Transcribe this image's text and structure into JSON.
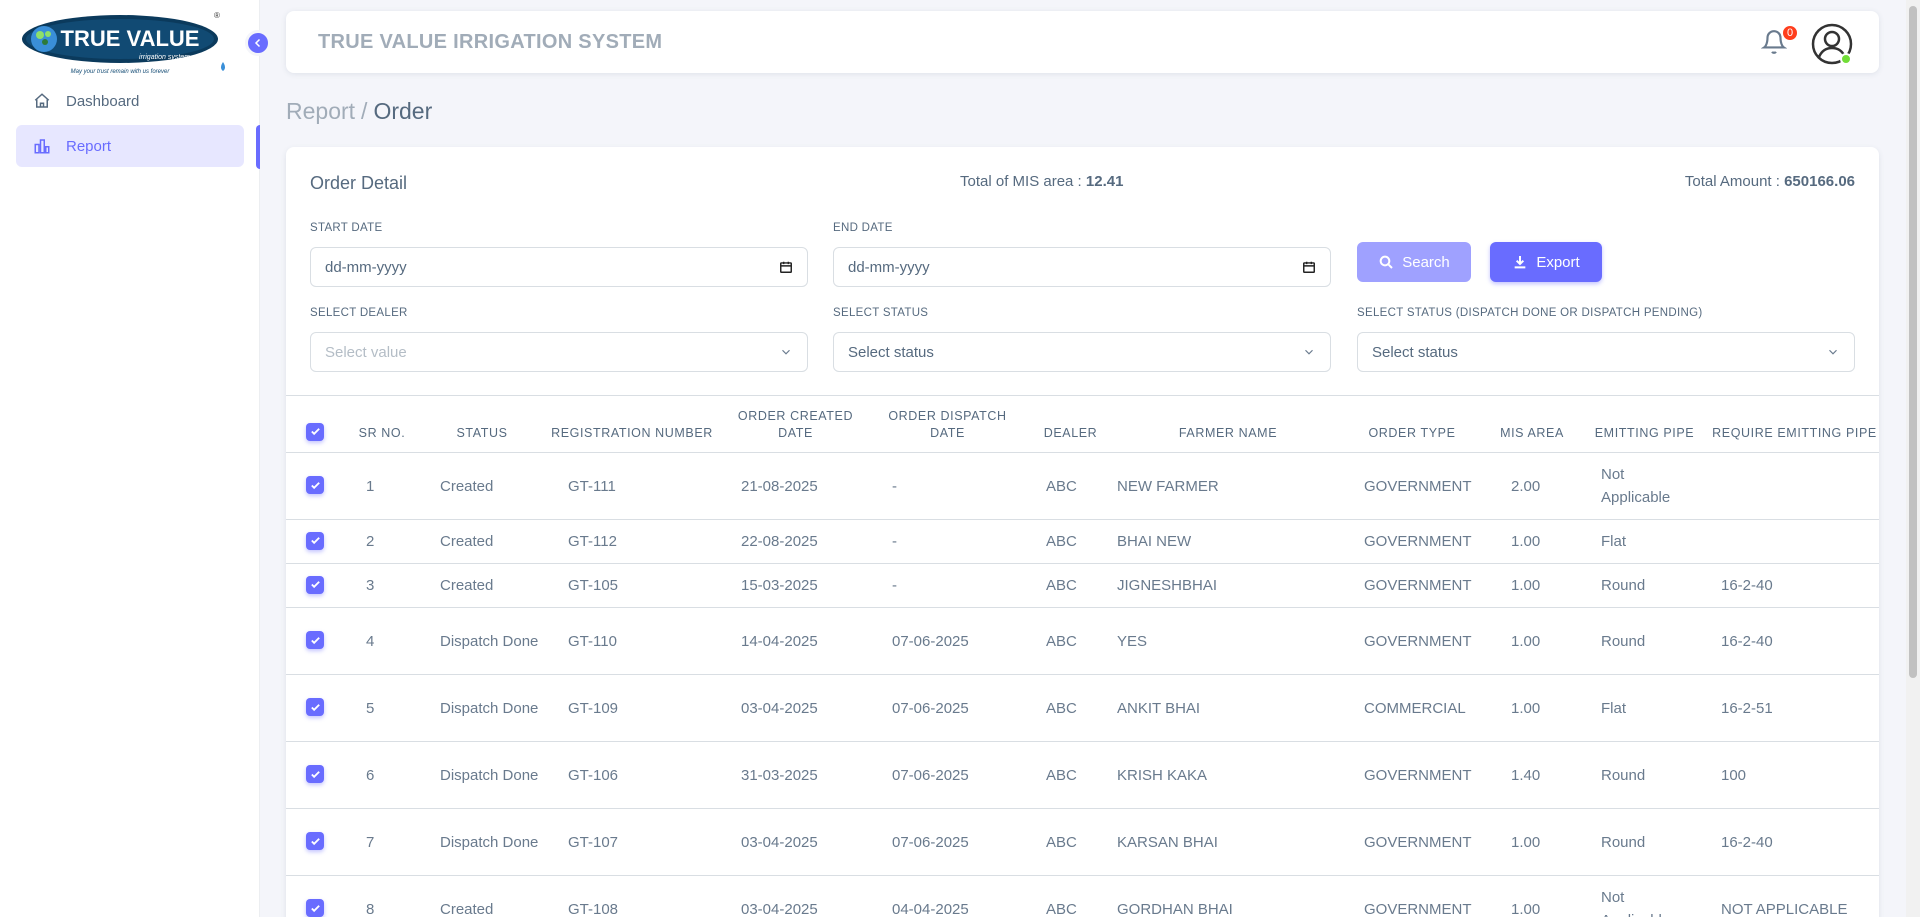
{
  "brand": {
    "logo_text": "TRUE VALUE",
    "logo_tagline": "irrigation system",
    "logo_slogan": "May your trust remain with us forever"
  },
  "sidebar": {
    "items": [
      {
        "label": "Dashboard",
        "icon": "home-icon",
        "active": false
      },
      {
        "label": "Report",
        "icon": "bar-chart-icon",
        "active": true
      }
    ]
  },
  "navbar": {
    "title": "TRUE VALUE IRRIGATION SYSTEM",
    "notification_count": "0"
  },
  "breadcrumb": {
    "parent": "Report",
    "separator": "/",
    "current": "Order"
  },
  "card": {
    "title": "Order Detail",
    "mis_label": "Total of MIS area :",
    "mis_value": "12.41",
    "amount_label": "Total Amount :",
    "amount_value": "650166.06"
  },
  "filters": {
    "start_date_label": "START DATE",
    "start_date_placeholder": "dd-mm-yyyy",
    "end_date_label": "END DATE",
    "end_date_placeholder": "dd-mm-yyyy",
    "search_label": "Search",
    "export_label": "Export",
    "dealer_label": "SELECT DEALER",
    "dealer_placeholder": "Select value",
    "status_label": "SELECT STATUS",
    "status_value": "Select status",
    "dispatch_label": "SELECT STATUS (DISPATCH DONE OR DISPATCH PENDING)",
    "dispatch_value": "Select status"
  },
  "table": {
    "headers": [
      "SR NO.",
      "STATUS",
      "REGISTRATION NUMBER",
      "ORDER CREATED DATE",
      "ORDER DISPATCH DATE",
      "DEALER",
      "FARMER NAME",
      "ORDER TYPE",
      "MIS AREA",
      "EMITTING PIPE",
      "REQUIRE EMITTING PIPE"
    ],
    "rows": [
      {
        "sr": "1",
        "status": "Created",
        "reg": "GT-111",
        "created": "21-08-2025",
        "dispatch": "-",
        "dealer": "ABC",
        "farmer": "NEW FARMER",
        "type": "GOVERNMENT",
        "mis": "2.00",
        "pipe": "Not Applicable",
        "req": ""
      },
      {
        "sr": "2",
        "status": "Created",
        "reg": "GT-112",
        "created": "22-08-2025",
        "dispatch": "-",
        "dealer": "ABC",
        "farmer": "BHAI NEW",
        "type": "GOVERNMENT",
        "mis": "1.00",
        "pipe": "Flat",
        "req": ""
      },
      {
        "sr": "3",
        "status": "Created",
        "reg": "GT-105",
        "created": "15-03-2025",
        "dispatch": "-",
        "dealer": "ABC",
        "farmer": "JIGNESHBHAI",
        "type": "GOVERNMENT",
        "mis": "1.00",
        "pipe": "Round",
        "req": "16-2-40"
      },
      {
        "sr": "4",
        "status": "Dispatch Done",
        "reg": "GT-110",
        "created": "14-04-2025",
        "dispatch": "07-06-2025",
        "dealer": "ABC",
        "farmer": "YES",
        "type": "GOVERNMENT",
        "mis": "1.00",
        "pipe": "Round",
        "req": "16-2-40"
      },
      {
        "sr": "5",
        "status": "Dispatch Done",
        "reg": "GT-109",
        "created": "03-04-2025",
        "dispatch": "07-06-2025",
        "dealer": "ABC",
        "farmer": "ANKIT BHAI",
        "type": "COMMERCIAL",
        "mis": "1.00",
        "pipe": "Flat",
        "req": "16-2-51"
      },
      {
        "sr": "6",
        "status": "Dispatch Done",
        "reg": "GT-106",
        "created": "31-03-2025",
        "dispatch": "07-06-2025",
        "dealer": "ABC",
        "farmer": "KRISH KAKA",
        "type": "GOVERNMENT",
        "mis": "1.40",
        "pipe": "Round",
        "req": "100"
      },
      {
        "sr": "7",
        "status": "Dispatch Done",
        "reg": "GT-107",
        "created": "03-04-2025",
        "dispatch": "07-06-2025",
        "dealer": "ABC",
        "farmer": "KARSAN BHAI",
        "type": "GOVERNMENT",
        "mis": "1.00",
        "pipe": "Round",
        "req": "16-2-40"
      },
      {
        "sr": "8",
        "status": "Created",
        "reg": "GT-108",
        "created": "03-04-2025",
        "dispatch": "04-04-2025",
        "dealer": "ABC",
        "farmer": "GORDHAN BHAI",
        "type": "GOVERNMENT",
        "mis": "1.00",
        "pipe": "Not Applicable",
        "req": "NOT APPLICABLE"
      }
    ]
  },
  "colors": {
    "accent": "#696cff",
    "accent_light": "#e7e7ff",
    "badge": "#ff3e1d",
    "online": "#71dd37"
  }
}
